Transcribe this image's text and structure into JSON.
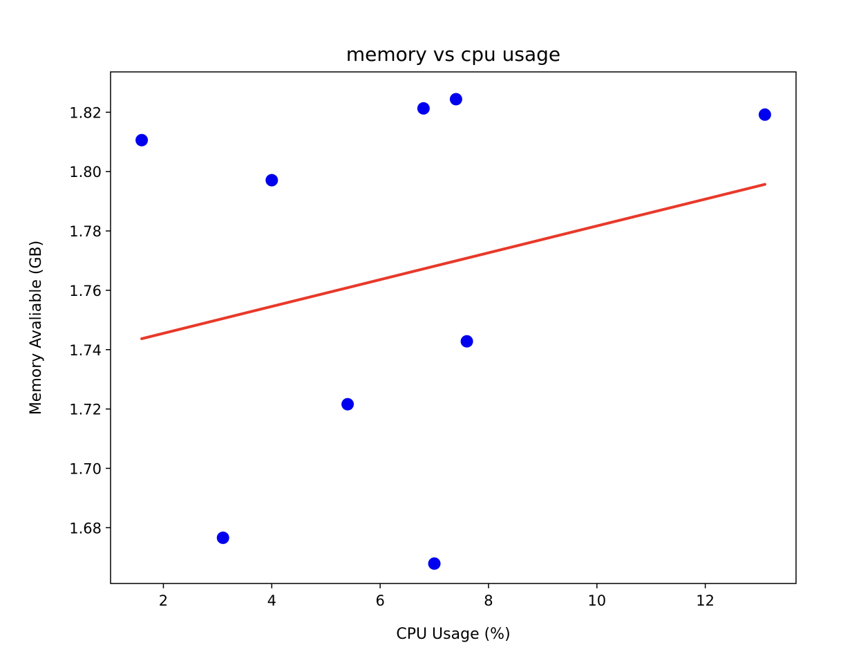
{
  "chart_data": {
    "type": "scatter",
    "title": "memory vs cpu usage",
    "xlabel": "CPU Usage (%)",
    "ylabel": "Memory Avaliable (GB)",
    "xlim": [
      1.025,
      13.675
    ],
    "ylim": [
      1.6612,
      1.8336
    ],
    "xticks": [
      2,
      4,
      6,
      8,
      10,
      12
    ],
    "xtick_labels": [
      "2",
      "4",
      "6",
      "8",
      "10",
      "12"
    ],
    "yticks": [
      1.68,
      1.7,
      1.72,
      1.74,
      1.76,
      1.78,
      1.8,
      1.82
    ],
    "ytick_labels": [
      "1.68",
      "1.70",
      "1.72",
      "1.74",
      "1.76",
      "1.78",
      "1.80",
      "1.82"
    ],
    "grid": false,
    "points": {
      "color": "#0000ee",
      "x": [
        1.6,
        3.1,
        4.0,
        5.4,
        6.8,
        7.0,
        7.4,
        7.6,
        13.1
      ],
      "y": [
        1.8106,
        1.6766,
        1.7971,
        1.7216,
        1.8213,
        1.6679,
        1.8244,
        1.7428,
        1.8192
      ]
    },
    "trendline": {
      "color": "#e8392a",
      "x": [
        1.6,
        13.1
      ],
      "y": [
        1.7437,
        1.7957
      ]
    }
  }
}
